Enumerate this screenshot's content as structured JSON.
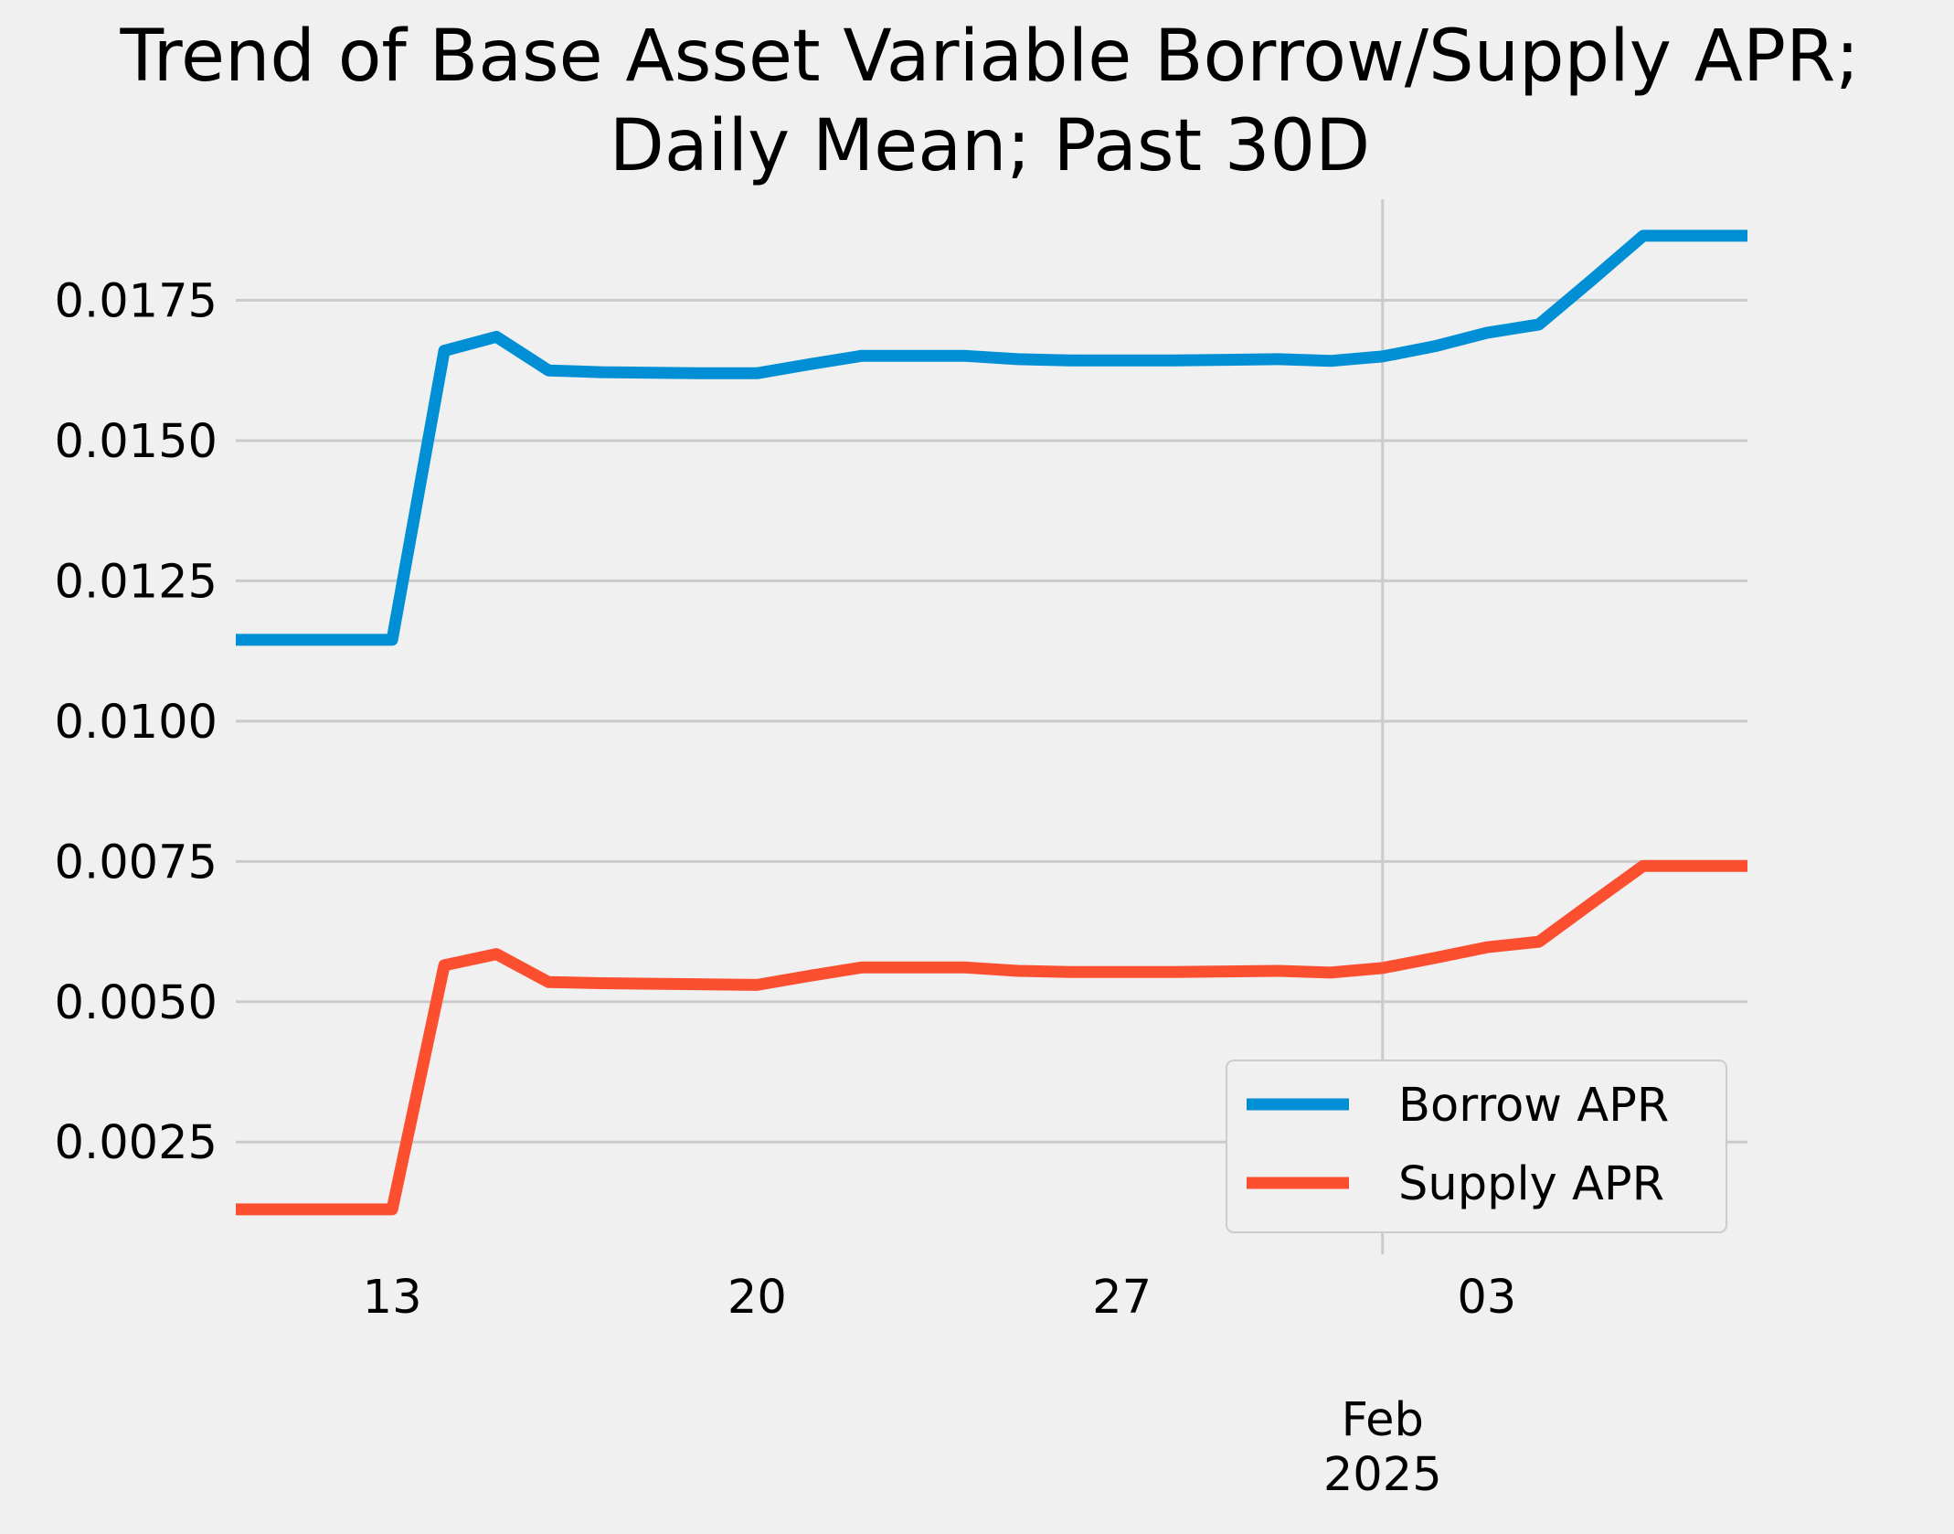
{
  "chart_data": {
    "type": "line",
    "title_lines": [
      "Trend of Base Asset Variable Borrow/Supply APR;",
      "Daily Mean; Past 30D"
    ],
    "xlabel": "",
    "ylabel": "",
    "x_range": [
      "2025-01-09",
      "2025-02-06"
    ],
    "ylim": [
      0.0005,
      0.0193
    ],
    "x_ticks": [
      {
        "date": "2025-01-13",
        "label": "13"
      },
      {
        "date": "2025-01-20",
        "label": "20"
      },
      {
        "date": "2025-01-27",
        "label": "27"
      },
      {
        "date": "2025-02-03",
        "label": "03"
      }
    ],
    "x_major_tick": {
      "date": "2025-02-01",
      "label_lines": [
        "Feb",
        "2025"
      ]
    },
    "y_ticks": [
      {
        "value": 0.0025,
        "label": "0.0025"
      },
      {
        "value": 0.005,
        "label": "0.0050"
      },
      {
        "value": 0.0075,
        "label": "0.0075"
      },
      {
        "value": 0.01,
        "label": "0.0100"
      },
      {
        "value": 0.0125,
        "label": "0.0125"
      },
      {
        "value": 0.015,
        "label": "0.0150"
      },
      {
        "value": 0.0175,
        "label": "0.0175"
      }
    ],
    "grid": true,
    "legend_position": "lower-right",
    "x": [
      "2025-01-10",
      "2025-01-11",
      "2025-01-12",
      "2025-01-13",
      "2025-01-14",
      "2025-01-15",
      "2025-01-16",
      "2025-01-17",
      "2025-01-18",
      "2025-01-19",
      "2025-01-20",
      "2025-01-21",
      "2025-01-22",
      "2025-01-23",
      "2025-01-24",
      "2025-01-25",
      "2025-01-26",
      "2025-01-27",
      "2025-01-28",
      "2025-01-29",
      "2025-01-30",
      "2025-01-31",
      "2025-02-01",
      "2025-02-02",
      "2025-02-03",
      "2025-02-04",
      "2025-02-05",
      "2025-02-06",
      "2025-02-07",
      "2025-02-08"
    ],
    "series": [
      {
        "name": "Borrow APR",
        "color": "#008fd5",
        "values": [
          0.01145,
          0.01145,
          0.01145,
          0.01145,
          0.0166,
          0.01685,
          0.01625,
          0.01622,
          0.01621,
          0.0162,
          0.0162,
          0.01636,
          0.01651,
          0.01651,
          0.01651,
          0.01645,
          0.01643,
          0.01643,
          0.01643,
          0.01644,
          0.01645,
          0.01642,
          0.0165,
          0.01668,
          0.01692,
          0.01707,
          0.01785,
          0.01865,
          0.01865,
          0.01865
        ]
      },
      {
        "name": "Supply APR",
        "color": "#fc4f30",
        "values": [
          0.0013,
          0.0013,
          0.0013,
          0.0013,
          0.00565,
          0.00585,
          0.00535,
          0.00533,
          0.00532,
          0.00531,
          0.0053,
          0.00546,
          0.00561,
          0.00561,
          0.00561,
          0.00555,
          0.00553,
          0.00553,
          0.00553,
          0.00554,
          0.00555,
          0.00552,
          0.0056,
          0.00578,
          0.00597,
          0.00607,
          0.00675,
          0.00742,
          0.00742,
          0.00742
        ]
      }
    ]
  }
}
